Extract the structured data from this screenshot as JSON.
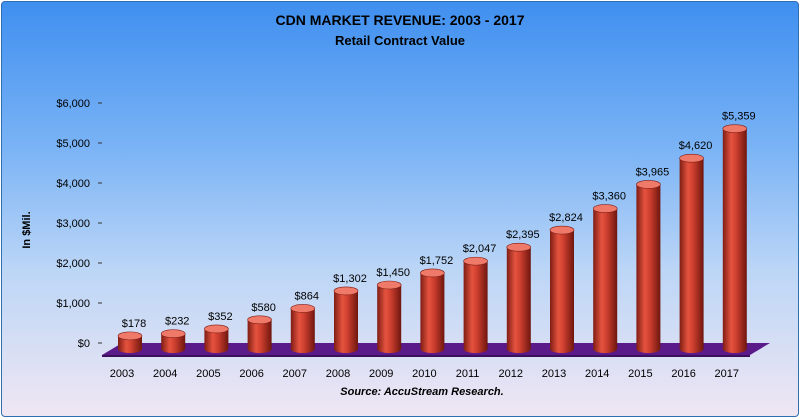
{
  "chart_data": {
    "type": "bar",
    "title": "CDN MARKET REVENUE: 2003 - 2017",
    "subtitle": "Retail Contract Value",
    "ylabel": "In $Mil.",
    "source": "Source: AccuStream Research.",
    "categories": [
      "2003",
      "2004",
      "2005",
      "2006",
      "2007",
      "2008",
      "2009",
      "2010",
      "2011",
      "2012",
      "2013",
      "2014",
      "2015",
      "2016",
      "2017"
    ],
    "values": [
      178,
      232,
      352,
      580,
      864,
      1302,
      1450,
      1752,
      2047,
      2395,
      2824,
      3360,
      3965,
      4620,
      5359
    ],
    "data_labels": [
      "$178",
      "$232",
      "$352",
      "$580",
      "$864",
      "$1,302",
      "$1,450",
      "$1,752",
      "$2,047",
      "$2,395",
      "$2,824",
      "$3,360",
      "$3,965",
      "$4,620",
      "$5,359"
    ],
    "yticks": [
      0,
      1000,
      2000,
      3000,
      4000,
      5000,
      6000
    ],
    "ytick_labels": [
      "$0",
      "$1,000",
      "$2,000",
      "$3,000",
      "$4,000",
      "$5,000",
      "$6,000"
    ],
    "ylim": [
      0,
      6000
    ],
    "grid": false,
    "legend": "none",
    "colors": {
      "bar": "#c0392b",
      "bar_dark": "#7f1d14",
      "bar_light": "#f07a6a",
      "floor": "#5a1a8a",
      "floor_dark": "#3a0f5c"
    }
  }
}
